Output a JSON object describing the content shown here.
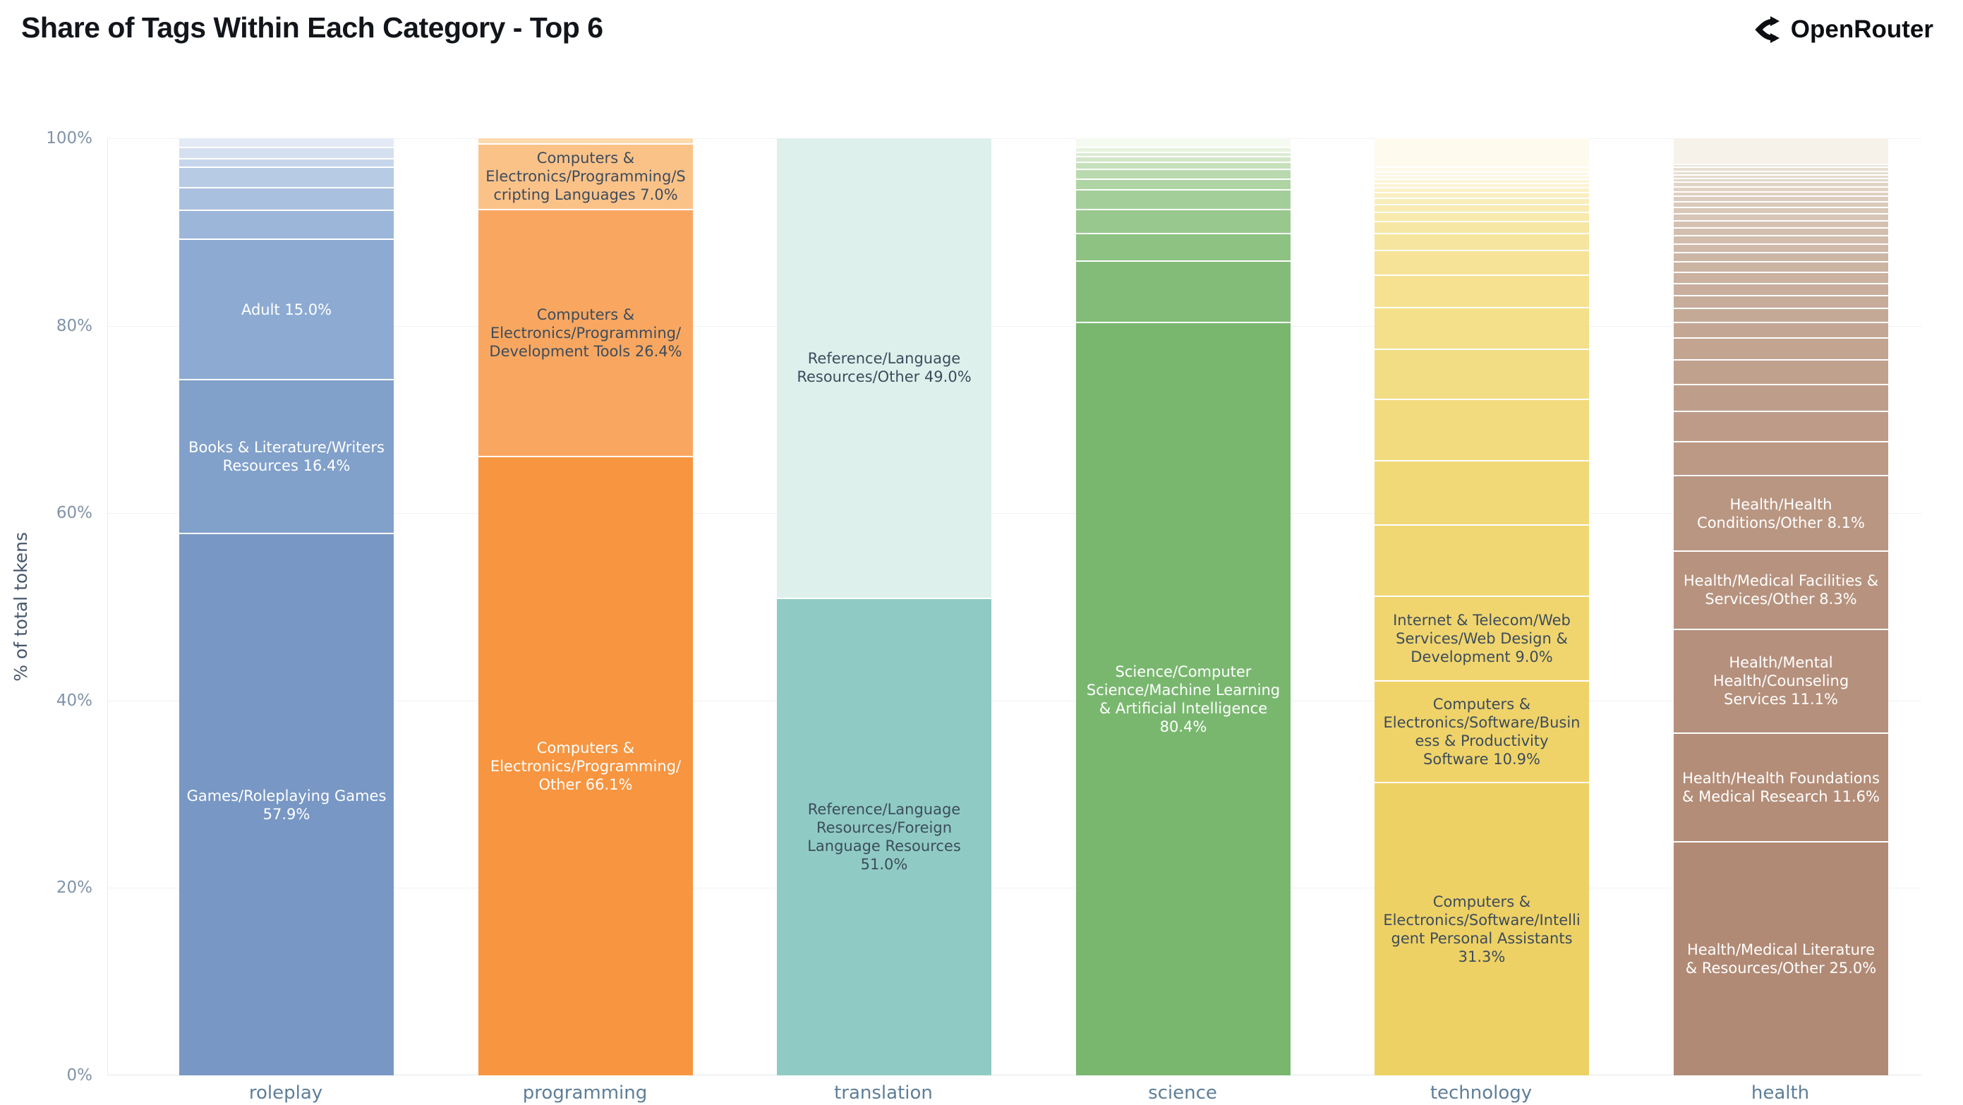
{
  "title": "Share of Tags Within Each Category - Top 6",
  "brand": {
    "name": "OpenRouter",
    "icon": "openrouter-fork-icon"
  },
  "y_axis": {
    "title": "% of total tokens",
    "ticks": [
      "100%",
      "80%",
      "60%",
      "40%",
      "20%",
      "0%"
    ]
  },
  "chart_data": {
    "type": "bar",
    "stacked": true,
    "normalized": true,
    "title": "Share of Tags Within Each Category - Top 6",
    "xlabel": "",
    "ylabel": "% of total tokens",
    "ylim": [
      0,
      100
    ],
    "grid": "horizontal",
    "legend": "none",
    "categories": [
      "roleplay",
      "programming",
      "translation",
      "science",
      "technology",
      "health"
    ],
    "bars": [
      {
        "category": "roleplay",
        "segments": [
          {
            "label": "Games/Roleplaying Games",
            "value": 57.9,
            "color": "#7897c4",
            "text": "#ffffff",
            "display": "Games/Roleplaying Games 57.9%"
          },
          {
            "label": "Books & Literature/Writers Resources",
            "value": 16.4,
            "color": "#81a0ca",
            "text": "#ffffff",
            "display": "Books & Literature/Writers Resources 16.4%"
          },
          {
            "label": "Adult",
            "value": 15.0,
            "color": "#8dabd2",
            "text": "#ffffff",
            "display": "Adult 15.0%"
          },
          {
            "label": "",
            "value": 3.1,
            "color": "#9cb6d9",
            "display": ""
          },
          {
            "label": "",
            "value": 2.4,
            "color": "#aac0df",
            "display": ""
          },
          {
            "label": "",
            "value": 2.2,
            "color": "#b8cbe5",
            "display": ""
          },
          {
            "label": "",
            "value": 0.9,
            "color": "#c6d5eb",
            "display": ""
          },
          {
            "label": "",
            "value": 1.2,
            "color": "#d4e0f0",
            "display": ""
          },
          {
            "label": "",
            "value": 0.9,
            "color": "#e3eaf6",
            "display": ""
          }
        ]
      },
      {
        "category": "programming",
        "segments": [
          {
            "label": "Computers & Electronics/Programming/Other",
            "value": 66.1,
            "color": "#f79540",
            "text": "#ffffff",
            "display": "Computers & Electronics/Programming/Other 66.1%"
          },
          {
            "label": "Computers & Electronics/Programming/Development Tools",
            "value": 26.4,
            "color": "#f9a760",
            "text": "#3d4c5c",
            "display": "Computers & Electronics/Programming/Development Tools 26.4%"
          },
          {
            "label": "Computers & Electronics/Programming/Scripting Languages",
            "value": 7.0,
            "color": "#fbc288",
            "text": "#3d4c5c",
            "display": "Computers & Electronics/Programming/Scripting Languages 7.0%"
          },
          {
            "label": "",
            "value": 0.5,
            "color": "#fdd9ae",
            "display": ""
          }
        ]
      },
      {
        "category": "translation",
        "segments": [
          {
            "label": "Reference/Language Resources/Foreign Language Resources",
            "value": 51.0,
            "color": "#8fcbc4",
            "text": "#3d4c5c",
            "display": "Reference/Language Resources/Foreign Language Resources 51.0%"
          },
          {
            "label": "Reference/Language Resources/Other",
            "value": 49.0,
            "color": "#def0ec",
            "text": "#3d4c5c",
            "display": "Reference/Language Resources/Other 49.0%"
          }
        ]
      },
      {
        "category": "science",
        "segments": [
          {
            "label": "Science/Computer Science/Machine Learning & Artificial Intelligence",
            "value": 80.4,
            "color": "#79b76f",
            "text": "#ffffff",
            "display": "Science/Computer Science/Machine Learning & Artificial Intelligence 80.4%"
          },
          {
            "label": "",
            "value": 6.6,
            "color": "#83bc79",
            "display": ""
          },
          {
            "label": "",
            "value": 2.9,
            "color": "#8dc283",
            "display": ""
          },
          {
            "label": "",
            "value": 2.6,
            "color": "#98c88e",
            "display": ""
          },
          {
            "label": "",
            "value": 2.1,
            "color": "#a3ce99",
            "display": ""
          },
          {
            "label": "",
            "value": 1.1,
            "color": "#aed4a4",
            "display": ""
          },
          {
            "label": "",
            "value": 1.1,
            "color": "#b9daaf",
            "display": ""
          },
          {
            "label": "",
            "value": 0.7,
            "color": "#c5e0bb",
            "display": ""
          },
          {
            "label": "",
            "value": 0.6,
            "color": "#d1e6c7",
            "display": ""
          },
          {
            "label": "",
            "value": 0.5,
            "color": "#dcecd3",
            "display": ""
          },
          {
            "label": "",
            "value": 0.5,
            "color": "#e8f2df",
            "display": ""
          },
          {
            "label": "",
            "value": 0.9,
            "color": "#f5faf1",
            "display": ""
          }
        ]
      },
      {
        "category": "technology",
        "segments": [
          {
            "label": "Computers & Electronics/Software/Intelligent Personal Assistants",
            "value": 31.3,
            "color": "#eed164",
            "text": "#3d4c5c",
            "display": "Computers & Electronics/Software/Intelligent Personal Assistants 31.3%"
          },
          {
            "label": "Computers & Electronics/Software/Business & Productivity Software",
            "value": 10.9,
            "color": "#efd369",
            "text": "#3d4c5c",
            "display": "Computers & Electronics/Software/Business & Productivity Software 10.9%"
          },
          {
            "label": "Internet & Telecom/Web Services/Web Design & Development",
            "value": 9.0,
            "color": "#f0d56e",
            "text": "#3d4c5c",
            "display": "Internet & Telecom/Web Services/Web Design & Development 9.0%"
          },
          {
            "label": "",
            "value": 7.6,
            "color": "#f1d773",
            "display": ""
          },
          {
            "label": "",
            "value": 6.9,
            "color": "#f1d978",
            "display": ""
          },
          {
            "label": "",
            "value": 6.5,
            "color": "#f2db7e",
            "display": ""
          },
          {
            "label": "",
            "value": 5.4,
            "color": "#f3dd84",
            "display": ""
          },
          {
            "label": "",
            "value": 4.4,
            "color": "#f4df8a",
            "display": ""
          },
          {
            "label": "",
            "value": 3.5,
            "color": "#f5e190",
            "display": ""
          },
          {
            "label": "",
            "value": 2.6,
            "color": "#f6e397",
            "display": ""
          },
          {
            "label": "",
            "value": 1.8,
            "color": "#f6e59e",
            "display": ""
          },
          {
            "label": "",
            "value": 1.3,
            "color": "#f7e7a5",
            "display": ""
          },
          {
            "label": "",
            "value": 1.0,
            "color": "#f8e9ac",
            "display": ""
          },
          {
            "label": "",
            "value": 0.8,
            "color": "#f9ebb4",
            "display": ""
          },
          {
            "label": "",
            "value": 0.7,
            "color": "#f9edbb",
            "display": ""
          },
          {
            "label": "",
            "value": 0.6,
            "color": "#faefc3",
            "display": ""
          },
          {
            "label": "",
            "value": 0.5,
            "color": "#fbf1ca",
            "display": ""
          },
          {
            "label": "",
            "value": 0.5,
            "color": "#fbf3d2",
            "display": ""
          },
          {
            "label": "",
            "value": 0.4,
            "color": "#fcf5d9",
            "display": ""
          },
          {
            "label": "",
            "value": 0.4,
            "color": "#fdf7e1",
            "display": ""
          },
          {
            "label": "",
            "value": 0.4,
            "color": "#fdf8e6",
            "display": ""
          },
          {
            "label": "",
            "value": 0.5,
            "color": "#fefaea",
            "display": ""
          },
          {
            "label": "",
            "value": 3.0,
            "color": "#fefbee",
            "display": ""
          }
        ]
      },
      {
        "category": "health",
        "segments": [
          {
            "label": "Health/Medical Literature & Resources/Other",
            "value": 25.0,
            "color": "#b18a75",
            "text": "#ffffff",
            "display": "Health/Medical Literature & Resources/Other 25.0%"
          },
          {
            "label": "Health/Health Foundations & Medical Research",
            "value": 11.6,
            "color": "#b38d78",
            "text": "#ffffff",
            "display": "Health/Health Foundations & Medical Research 11.6%"
          },
          {
            "label": "Health/Mental Health/Counseling Services",
            "value": 11.1,
            "color": "#b5907c",
            "text": "#ffffff",
            "display": "Health/Mental Health/Counseling Services 11.1%"
          },
          {
            "label": "Health/Medical Facilities & Services/Other",
            "value": 8.3,
            "color": "#b7937f",
            "text": "#ffffff",
            "display": "Health/Medical Facilities & Services/Other 8.3%"
          },
          {
            "label": "Health/Health Conditions/Other",
            "value": 8.1,
            "color": "#b99682",
            "text": "#ffffff",
            "display": "Health/Health Conditions/Other 8.1%"
          },
          {
            "label": "",
            "value": 3.6,
            "color": "#bb9985",
            "display": ""
          },
          {
            "label": "",
            "value": 3.2,
            "color": "#bd9b88",
            "display": ""
          },
          {
            "label": "",
            "value": 2.9,
            "color": "#be9e8b",
            "display": ""
          },
          {
            "label": "",
            "value": 2.6,
            "color": "#c0a18e",
            "display": ""
          },
          {
            "label": "",
            "value": 2.4,
            "color": "#c2a491",
            "display": ""
          },
          {
            "label": "",
            "value": 1.6,
            "color": "#c4a694",
            "display": ""
          },
          {
            "label": "",
            "value": 1.5,
            "color": "#c5a997",
            "display": ""
          },
          {
            "label": "",
            "value": 1.4,
            "color": "#c7ac9a",
            "display": ""
          },
          {
            "label": "",
            "value": 1.3,
            "color": "#c9ae9d",
            "display": ""
          },
          {
            "label": "",
            "value": 1.2,
            "color": "#cbb1a0",
            "display": ""
          },
          {
            "label": "",
            "value": 1.1,
            "color": "#ccb4a3",
            "display": ""
          },
          {
            "label": "",
            "value": 1.0,
            "color": "#ceb6a6",
            "display": ""
          },
          {
            "label": "",
            "value": 0.9,
            "color": "#d0b9a9",
            "display": ""
          },
          {
            "label": "",
            "value": 0.9,
            "color": "#d2bcac",
            "display": ""
          },
          {
            "label": "",
            "value": 0.8,
            "color": "#d3bfaf",
            "display": ""
          },
          {
            "label": "",
            "value": 0.8,
            "color": "#d5c1b2",
            "display": ""
          },
          {
            "label": "",
            "value": 0.7,
            "color": "#d7c4b5",
            "display": ""
          },
          {
            "label": "",
            "value": 0.7,
            "color": "#d9c7b8",
            "display": ""
          },
          {
            "label": "",
            "value": 0.6,
            "color": "#dacabb",
            "display": ""
          },
          {
            "label": "",
            "value": 0.6,
            "color": "#dcccbe",
            "display": ""
          },
          {
            "label": "",
            "value": 0.5,
            "color": "#decfc1",
            "display": ""
          },
          {
            "label": "",
            "value": 0.5,
            "color": "#e0d2c4",
            "display": ""
          },
          {
            "label": "",
            "value": 0.5,
            "color": "#e1d4c7",
            "display": ""
          },
          {
            "label": "",
            "value": 0.4,
            "color": "#e3d7ca",
            "display": ""
          },
          {
            "label": "",
            "value": 0.4,
            "color": "#e5dacd",
            "display": ""
          },
          {
            "label": "",
            "value": 0.4,
            "color": "#e7ddd0",
            "display": ""
          },
          {
            "label": "",
            "value": 0.4,
            "color": "#e8dfd3",
            "display": ""
          },
          {
            "label": "",
            "value": 0.3,
            "color": "#eae2d6",
            "display": ""
          },
          {
            "label": "",
            "value": 2.7,
            "color": "#f6f2ea",
            "display": ""
          }
        ]
      }
    ]
  }
}
